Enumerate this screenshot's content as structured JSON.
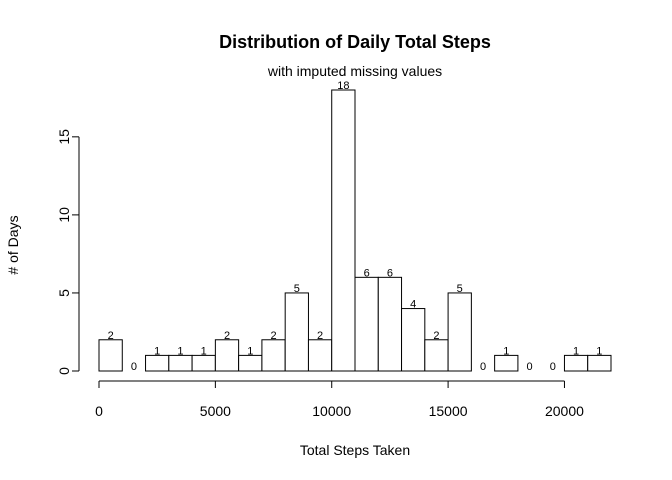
{
  "chart_data": {
    "type": "bar",
    "title": "Distribution of Daily Total Steps",
    "subtitle": "with imputed missing values",
    "xlabel": "Total Steps Taken",
    "ylabel": "# of Days",
    "bin_width": 1000,
    "x": [
      0,
      1000,
      2000,
      3000,
      4000,
      5000,
      6000,
      7000,
      8000,
      9000,
      10000,
      11000,
      12000,
      13000,
      14000,
      15000,
      16000,
      17000,
      18000,
      19000,
      20000,
      21000
    ],
    "values": [
      2,
      0,
      1,
      1,
      1,
      2,
      1,
      2,
      5,
      2,
      18,
      6,
      6,
      4,
      2,
      5,
      0,
      1,
      0,
      0,
      1,
      1
    ],
    "xlim": [
      0,
      22000
    ],
    "ylim": [
      0,
      18
    ],
    "x_ticks": [
      0,
      5000,
      10000,
      15000,
      20000
    ],
    "y_ticks": [
      0,
      5,
      10,
      15
    ],
    "grid": false,
    "legend": "none"
  }
}
